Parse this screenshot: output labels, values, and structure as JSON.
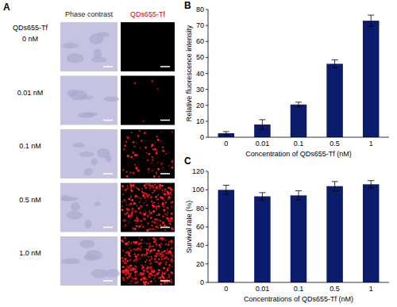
{
  "figure": {
    "labels": [
      "A",
      "B",
      "C"
    ]
  },
  "image_panel": {
    "columns": [
      "Phase contrast",
      "QDs655-Tf"
    ],
    "row_header": "QDs655-Tf",
    "rows": [
      "0 nM",
      "0.01 nM",
      "0.1 nM",
      "0.5 nM",
      "1.0 nM"
    ]
  },
  "chart_data": [
    {
      "type": "bar",
      "x_label": "Concentration of QDs655-Tf (nM)",
      "y_label": "Relative fluorescence intensity",
      "categories": [
        "0",
        "0.01",
        "0.1",
        "0.5",
        "1"
      ],
      "values": [
        2.5,
        8,
        20.5,
        46,
        73
      ],
      "errors": [
        1,
        3,
        1.5,
        2.5,
        3.5
      ],
      "color": "#0c1c6c",
      "ylim": [
        0,
        80
      ],
      "yticks": [
        0,
        10,
        20,
        30,
        40,
        50,
        60,
        70,
        80
      ]
    },
    {
      "type": "bar",
      "x_label": "Concentrations of QDs655-Tf (nM)",
      "y_label": "Survival  rate (%)",
      "categories": [
        "0",
        "0.01",
        "0.1",
        "0.5",
        "1"
      ],
      "values": [
        100,
        93,
        94,
        104,
        106
      ],
      "errors": [
        5,
        4,
        5,
        5,
        4
      ],
      "color": "#0c1c6c",
      "ylim": [
        0,
        120
      ],
      "yticks": [
        0,
        20,
        40,
        60,
        80,
        100,
        120
      ]
    }
  ]
}
